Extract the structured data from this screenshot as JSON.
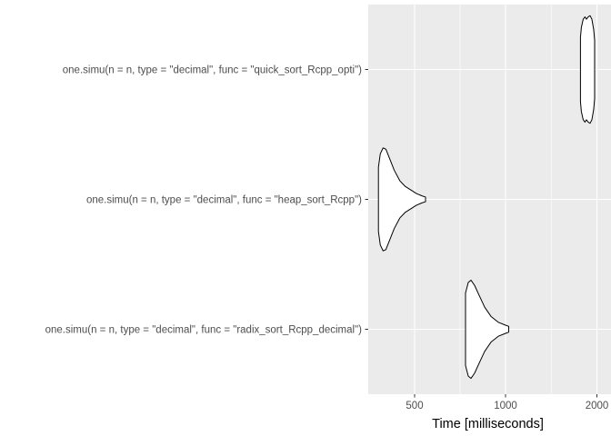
{
  "chart_data": {
    "type": "violin",
    "orientation": "horizontal",
    "title": "",
    "xlabel": "Time [milliseconds]",
    "ylabel": "",
    "xlim": [
      250,
      2075
    ],
    "x_ticks": [
      500,
      1000,
      2000
    ],
    "x_tick_labels": [
      "500",
      "1000",
      "2000"
    ],
    "grid": true,
    "colors": {
      "panel": "#ebebeb",
      "grid": "#ffffff",
      "violin_fill": "#ffffff",
      "violin_stroke": "#000000",
      "tick_text": "#4d4d4d"
    },
    "categories": [
      "one.simu(n = n, type = \"decimal\", func = \"quick_sort_Rcpp_opti\")",
      "one.simu(n = n, type = \"decimal\", func = \"heap_sort_Rcpp\")",
      "one.simu(n = n, type = \"decimal\", func = \"radix_sort_Rcpp_decimal\")"
    ],
    "series": [
      {
        "name": "one.simu(n = n, type = \"decimal\", func = \"quick_sort_Rcpp_opti\")",
        "min": 1820,
        "max": 1975,
        "profile": [
          [
            1820,
            0.55
          ],
          [
            1830,
            0.72
          ],
          [
            1850,
            0.86
          ],
          [
            1870,
            0.9
          ],
          [
            1885,
            0.86
          ],
          [
            1905,
            0.9
          ],
          [
            1925,
            0.92
          ],
          [
            1945,
            0.86
          ],
          [
            1965,
            0.68
          ],
          [
            1975,
            0.5
          ]
        ]
      },
      {
        "name": "one.simu(n = n, type = \"decimal\", func = \"heap_sort_Rcpp\")",
        "min": 305,
        "max": 560,
        "profile": [
          [
            305,
            0.55
          ],
          [
            315,
            0.78
          ],
          [
            330,
            0.88
          ],
          [
            345,
            0.86
          ],
          [
            365,
            0.7
          ],
          [
            390,
            0.5
          ],
          [
            420,
            0.32
          ],
          [
            450,
            0.22
          ],
          [
            480,
            0.16
          ],
          [
            510,
            0.1
          ],
          [
            540,
            0.06
          ],
          [
            560,
            0.04
          ]
        ]
      },
      {
        "name": "one.simu(n = n, type = \"decimal\", func = \"radix_sort_Rcpp_decimal\")",
        "min": 780,
        "max": 1035,
        "profile": [
          [
            780,
            0.62
          ],
          [
            795,
            0.8
          ],
          [
            810,
            0.84
          ],
          [
            830,
            0.75
          ],
          [
            855,
            0.58
          ],
          [
            885,
            0.38
          ],
          [
            920,
            0.22
          ],
          [
            960,
            0.12
          ],
          [
            1000,
            0.07
          ],
          [
            1035,
            0.05
          ]
        ]
      }
    ]
  }
}
